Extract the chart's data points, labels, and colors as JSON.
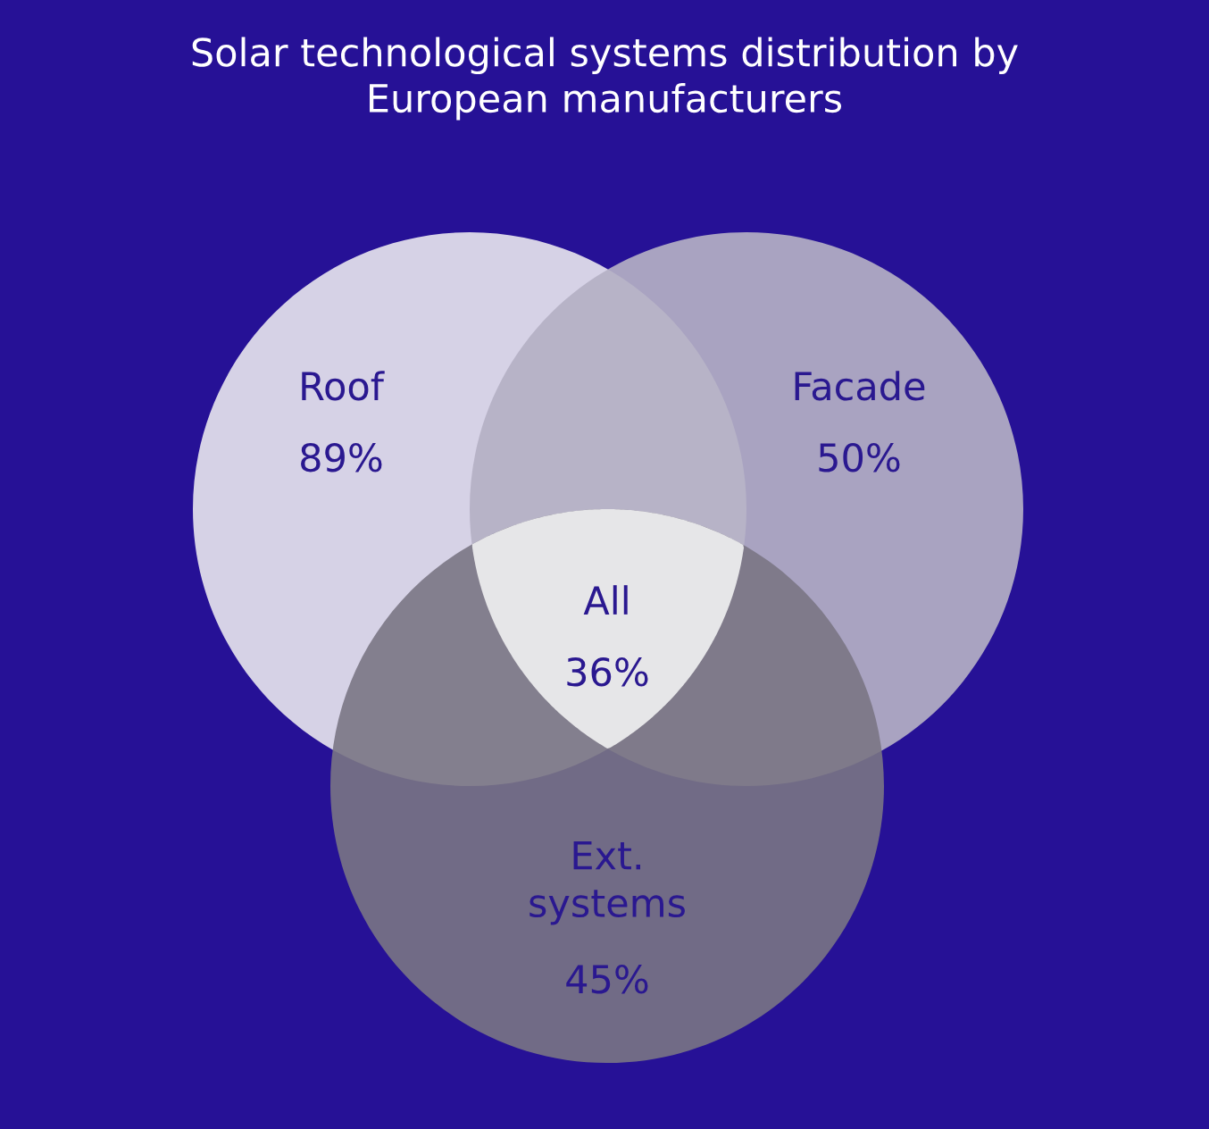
{
  "chart_data": {
    "type": "other",
    "title": "Solar technological systems distribution by\nEuropean manufacturers",
    "categories": [
      "Roof",
      "Facade",
      "Ext.\nsystems",
      "All"
    ],
    "values": [
      89,
      50,
      45,
      36
    ],
    "value_labels": [
      "89%",
      "50%",
      "45%",
      "36%"
    ],
    "colors": [
      "#dcd9e8",
      "#b4b0c4",
      "#7a7684",
      "#e6e6e8"
    ]
  }
}
